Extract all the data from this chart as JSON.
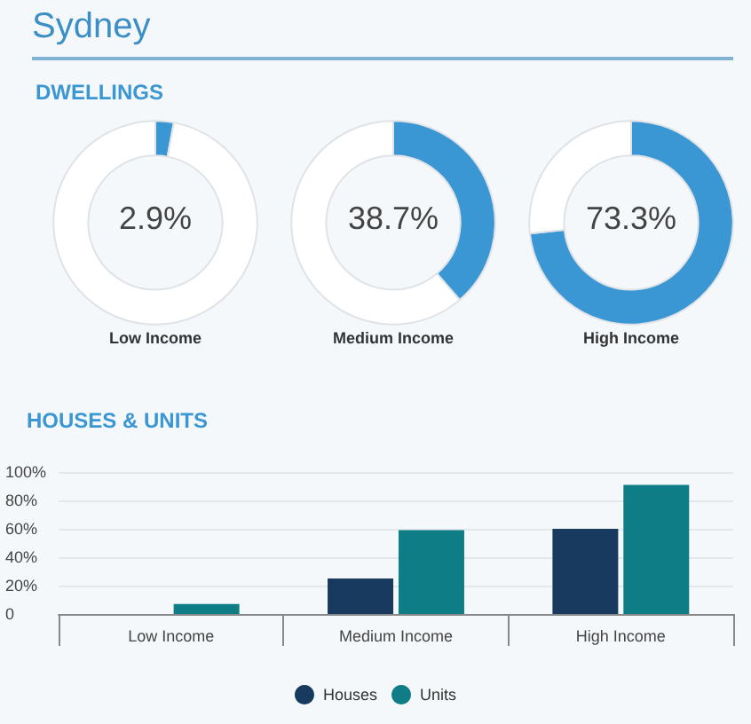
{
  "chart_data": [
    {
      "type": "other",
      "title": "Sydney",
      "subtitle": "DWELLINGS"
    },
    {
      "type": "donut",
      "title": "Low Income",
      "categories": [
        null,
        null
      ],
      "values": [
        2.9,
        97.1
      ],
      "colors": [
        "#3b97d3",
        "#ffffff"
      ],
      "annotations": [
        "2.9%"
      ]
    },
    {
      "type": "donut",
      "title": "Medium Income",
      "categories": [
        null,
        null
      ],
      "values": [
        38.7,
        61.3
      ],
      "colors": [
        "#3b97d3",
        "#ffffff"
      ],
      "annotations": [
        "38.7%"
      ]
    },
    {
      "type": "donut",
      "title": "High Income",
      "categories": [
        null,
        null
      ],
      "values": [
        73.3,
        26.7
      ],
      "colors": [
        "#3b97d3",
        "#ffffff"
      ],
      "annotations": [
        "73.3%"
      ]
    },
    {
      "type": "bar",
      "title": "HOUSES & UNITS",
      "categories": [
        "Low Income",
        "Medium Income",
        "High Income"
      ],
      "series": [
        {
          "name": "Houses",
          "color": "#173a5e",
          "values": [
            0,
            25,
            60
          ]
        },
        {
          "name": "Units",
          "color": "#0f7d85",
          "values": [
            7,
            59,
            91
          ]
        }
      ],
      "ylim": [
        0,
        100
      ],
      "yticks": [
        0,
        {
          "value": 20,
          "label": "20%"
        },
        {
          "value": 40,
          "label": "40%"
        },
        {
          "value": 60,
          "label": "60%"
        },
        {
          "value": 80,
          "label": "80%"
        },
        {
          "value": 100,
          "label": "100%"
        }
      ],
      "grid": "y",
      "legend": "bottom"
    }
  ]
}
